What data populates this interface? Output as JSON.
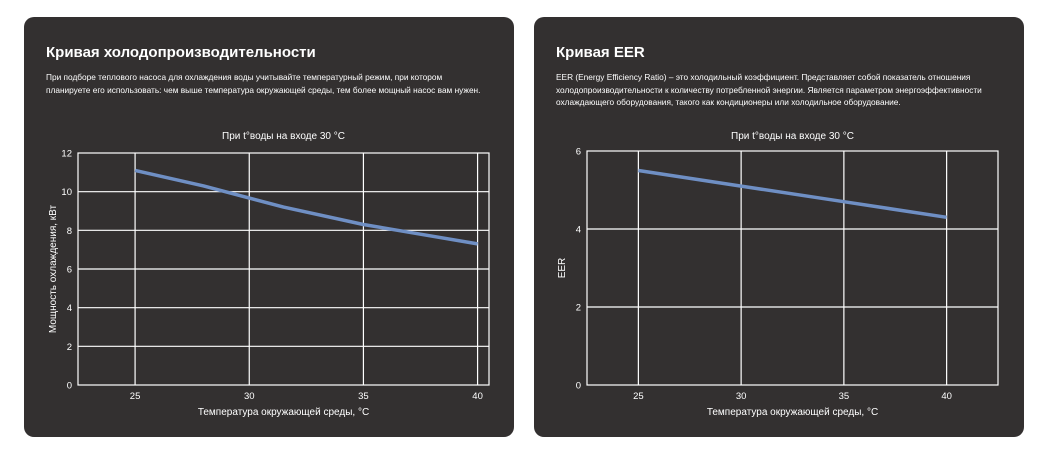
{
  "cards": [
    {
      "title": "Кривая холодопроизводительности",
      "description": "При подборе теплового насоса для охлаждения воды учитывайте температурный режим, при котором планируете его использовать: чем выше температура окружающей среды, тем более мощный насос вам нужен."
    },
    {
      "title": "Кривая EER",
      "description": "EER (Energy Efficiency Ratio) – это холодильный коэффициент. Представляет собой показатель отношения холодопроизводительности к количеству потребленной энергии. Является параметром энергоэффективности охлаждающего оборудования, такого как кондиционеры или холодильное оборудование."
    }
  ],
  "colors": {
    "card_background": "#333030",
    "line": "#6f8fc4",
    "grid": "#ffffff"
  },
  "chart_data": [
    {
      "type": "line",
      "title": "При t°воды на входе 30 °C",
      "xlabel": "Температура окружающей среды, °C",
      "ylabel": "Мощность охлаждения, кВт",
      "xlim": [
        22.5,
        40.5
      ],
      "ylim": [
        0,
        12
      ],
      "xticks": [
        25,
        30,
        35,
        40
      ],
      "yticks": [
        0,
        2,
        4,
        6,
        8,
        10,
        12
      ],
      "grid": true,
      "series": [
        {
          "x": [
            25,
            28,
            31.5,
            35,
            37.5,
            40
          ],
          "y": [
            11.1,
            10.3,
            9.2,
            8.3,
            7.8,
            7.3
          ]
        }
      ]
    },
    {
      "type": "line",
      "title": "При t°воды на входе 30 °C",
      "xlabel": "Температура окружающей среды, °C",
      "ylabel": "EER",
      "xlim": [
        22.5,
        42.5
      ],
      "ylim": [
        0,
        6
      ],
      "xticks": [
        25,
        30,
        35,
        40
      ],
      "yticks": [
        0,
        2,
        4,
        6
      ],
      "grid": true,
      "series": [
        {
          "x": [
            25,
            30,
            35,
            40
          ],
          "y": [
            5.5,
            5.1,
            4.7,
            4.3
          ]
        }
      ]
    }
  ]
}
